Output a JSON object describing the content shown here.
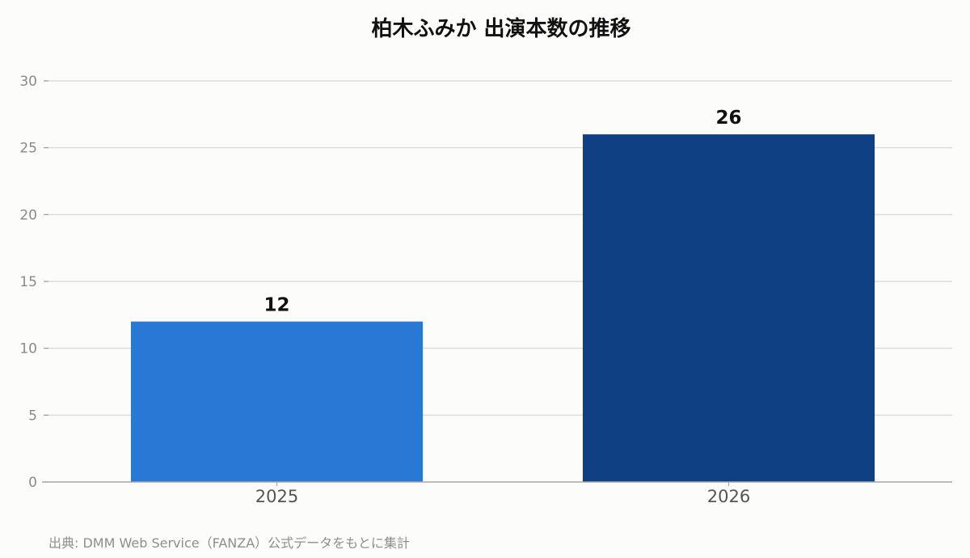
{
  "chart_data": {
    "type": "bar",
    "title": "柏木ふみか 出演本数の推移",
    "categories": [
      "2025",
      "2026"
    ],
    "values": [
      12,
      26
    ],
    "data_labels": [
      "12",
      "26"
    ],
    "bar_colors": [
      "#2a78d6",
      "#0f4084"
    ],
    "ylim": [
      0,
      30
    ],
    "yticks": [
      0,
      5,
      10,
      15,
      20,
      25,
      30
    ],
    "xlabel": "",
    "ylabel": "",
    "grid": true,
    "legend": "none"
  },
  "source_note": "出典: DMM Web Service（FANZA）公式データをもとに集計"
}
